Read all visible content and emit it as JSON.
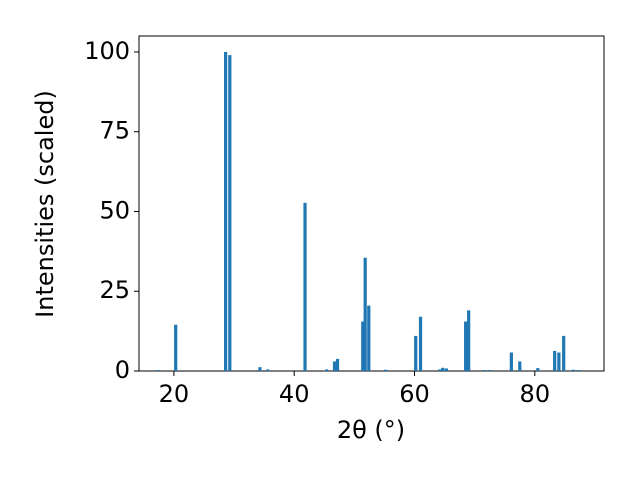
{
  "chart_data": {
    "type": "bar",
    "xlabel": "2θ (°)",
    "ylabel": "Intensities (scaled)",
    "x": [
      17.5,
      20.3,
      28.6,
      29.3,
      34.3,
      35.6,
      41.8,
      45.4,
      46.7,
      47.2,
      51.4,
      51.8,
      52.4,
      55.2,
      60.2,
      61.0,
      64.2,
      64.7,
      65.3,
      68.5,
      69.0,
      71.7,
      72.5,
      76.1,
      77.5,
      80.5,
      83.3,
      84.0,
      84.8,
      86.4,
      87.3
    ],
    "values": [
      0.3,
      14.5,
      100,
      99,
      1.2,
      0.5,
      52.7,
      0.5,
      3,
      3.8,
      15.5,
      35.5,
      20.5,
      0.4,
      11,
      17,
      0.5,
      1,
      0.8,
      15.5,
      19,
      0.3,
      0.3,
      5.8,
      3,
      0.9,
      6.3,
      5.8,
      11,
      0.4,
      0.3
    ],
    "color": "#1f77b4",
    "xlim": [
      14.2,
      91.5
    ],
    "ylim": [
      0,
      105
    ],
    "xticks": [
      20,
      40,
      60,
      80
    ],
    "yticks": [
      0,
      25,
      50,
      75,
      100
    ]
  }
}
